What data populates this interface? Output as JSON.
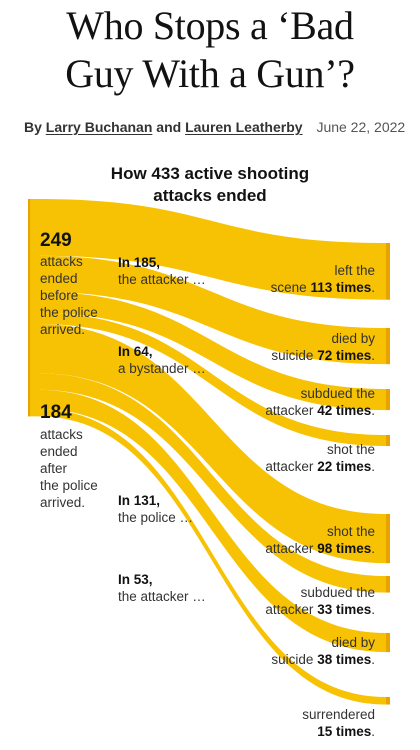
{
  "headline": {
    "line1": "Who Stops a ‘Bad",
    "line2": "Guy With a Gun’?"
  },
  "byline": {
    "prefix": "By",
    "author1": "Larry Buchanan",
    "conjunction": "and",
    "author2": "Lauren Leatherby",
    "date": "June 22, 2022"
  },
  "chart_title": {
    "line1": "How 433 active shooting",
    "line2": "attacks ended"
  },
  "colors": {
    "flow": "#f7c204",
    "edge": "#e8a300"
  },
  "chart_data": {
    "type": "sankey",
    "title": "How 433 active shooting attacks ended",
    "total": 433,
    "groups": [
      {
        "value": "249",
        "text": [
          "attacks",
          "ended",
          "before",
          "the police",
          "arrived."
        ],
        "branches": [
          {
            "lead": "In 185,",
            "actor": "the attacker …",
            "value": 185,
            "outcomes": [
              {
                "line1": "left the",
                "pre": "scene",
                "num": "113 times",
                "post": ".",
                "value": 113
              },
              {
                "line1": "died by",
                "pre": "suicide",
                "num": "72 times",
                "post": ".",
                "value": 72
              }
            ]
          },
          {
            "lead": "In 64,",
            "actor": "a bystander …",
            "value": 64,
            "outcomes": [
              {
                "line1": "subdued the",
                "pre": "attacker",
                "num": "42 times",
                "post": ".",
                "value": 42
              },
              {
                "line1": "shot the",
                "pre": "attacker",
                "num": "22 times",
                "post": ".",
                "value": 22
              }
            ]
          }
        ]
      },
      {
        "value": "184",
        "text": [
          "attacks",
          "ended",
          "after",
          "the police",
          "arrived."
        ],
        "branches": [
          {
            "lead": "In 131,",
            "actor": "the police …",
            "value": 131,
            "outcomes": [
              {
                "line1": "shot the",
                "pre": "attacker",
                "num": "98 times",
                "post": ".",
                "value": 98
              },
              {
                "line1": "subdued the",
                "pre": "attacker",
                "num": "33 times",
                "post": ".",
                "value": 33
              }
            ]
          },
          {
            "lead": "In 53,",
            "actor": "the attacker …",
            "value": 53,
            "outcomes": [
              {
                "line1": "died by",
                "pre": "suicide",
                "num": "38 times",
                "post": ".",
                "value": 38
              },
              {
                "line1": "",
                "pre": "surrendered",
                "num": "15 times",
                "post": ".",
                "value": 15
              }
            ]
          }
        ]
      }
    ]
  }
}
